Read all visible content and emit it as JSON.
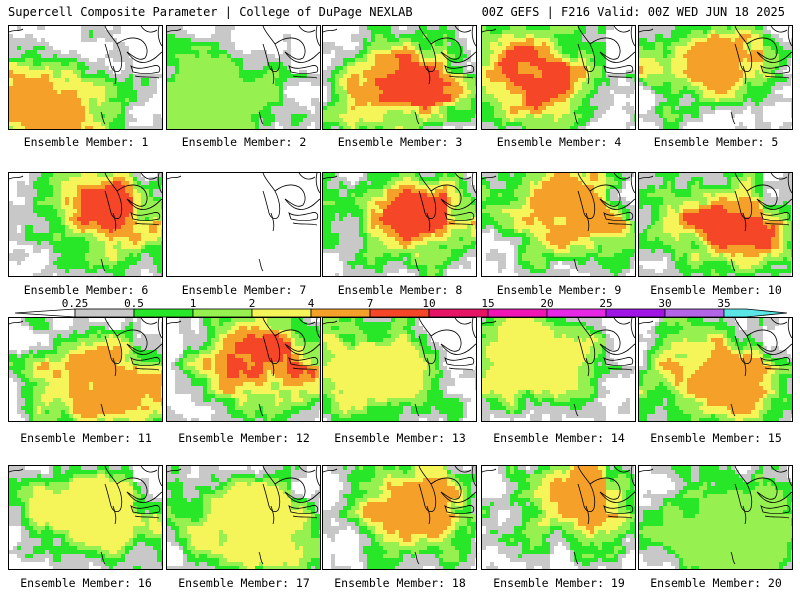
{
  "header": {
    "title_left": "Supercell Composite Parameter | College of DuPage NEXLAB",
    "title_right": "00Z GEFS | F216 Valid: 00Z WED JUN 18 2025"
  },
  "legend": {
    "labels": [
      "0.25",
      "0.5",
      "1",
      "2",
      "4",
      "7",
      "10",
      "15",
      "20",
      "25",
      "30",
      "35"
    ],
    "colors": [
      "#c8c8c8",
      "#28e628",
      "#96f050",
      "#f5f55a",
      "#f5a028",
      "#f54628",
      "#e61464",
      "#f014b4",
      "#e628e6",
      "#a014e6",
      "#b464e6",
      "#5ae6e6"
    ]
  },
  "members": [
    {
      "label": "Ensemble Member: 1",
      "intensity": 4
    },
    {
      "label": "Ensemble Member: 2",
      "intensity": 2
    },
    {
      "label": "Ensemble Member: 3",
      "intensity": 5
    },
    {
      "label": "Ensemble Member: 4",
      "intensity": 5
    },
    {
      "label": "Ensemble Member: 5",
      "intensity": 4
    },
    {
      "label": "Ensemble Member: 6",
      "intensity": 5
    },
    {
      "label": "Ensemble Member: 7",
      "intensity": 0
    },
    {
      "label": "Ensemble Member: 8",
      "intensity": 5
    },
    {
      "label": "Ensemble Member: 9",
      "intensity": 4
    },
    {
      "label": "Ensemble Member: 10",
      "intensity": 5
    },
    {
      "label": "Ensemble Member: 11",
      "intensity": 4
    },
    {
      "label": "Ensemble Member: 12",
      "intensity": 5
    },
    {
      "label": "Ensemble Member: 13",
      "intensity": 3
    },
    {
      "label": "Ensemble Member: 14",
      "intensity": 3
    },
    {
      "label": "Ensemble Member: 15",
      "intensity": 4
    },
    {
      "label": "Ensemble Member: 16",
      "intensity": 3
    },
    {
      "label": "Ensemble Member: 17",
      "intensity": 3
    },
    {
      "label": "Ensemble Member: 18",
      "intensity": 4
    },
    {
      "label": "Ensemble Member: 19",
      "intensity": 4
    },
    {
      "label": "Ensemble Member: 20",
      "intensity": 2
    }
  ]
}
